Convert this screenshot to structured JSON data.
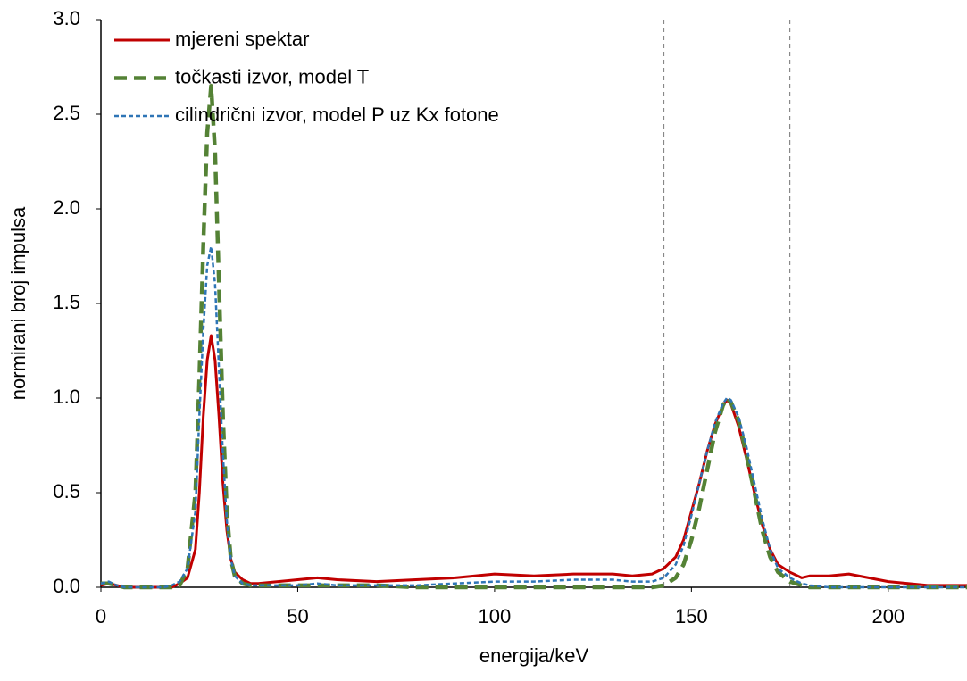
{
  "chart_data": {
    "type": "line",
    "x_label": "energija/keV",
    "y_label": "normirani broj impulsa",
    "x": [
      0,
      2,
      4,
      6,
      8,
      10,
      12,
      14,
      16,
      18,
      20,
      22,
      24,
      25,
      26,
      27,
      28,
      29,
      30,
      31,
      32,
      33,
      34,
      36,
      38,
      40,
      45,
      50,
      55,
      60,
      70,
      80,
      90,
      100,
      110,
      120,
      130,
      135,
      140,
      143,
      146,
      148,
      150,
      152,
      154,
      156,
      158,
      159,
      160,
      162,
      164,
      166,
      168,
      170,
      172,
      175,
      178,
      180,
      185,
      190,
      195,
      200,
      205,
      210,
      215,
      220
    ],
    "series": [
      {
        "name": "mjereni spektar",
        "color": "#c00000",
        "style": "solid",
        "values": [
          0.01,
          0.02,
          0.01,
          0,
          0,
          0,
          0,
          0,
          0,
          0,
          0.02,
          0.05,
          0.2,
          0.5,
          0.9,
          1.2,
          1.33,
          1.2,
          0.9,
          0.55,
          0.3,
          0.15,
          0.08,
          0.04,
          0.02,
          0.02,
          0.03,
          0.04,
          0.05,
          0.04,
          0.03,
          0.04,
          0.05,
          0.07,
          0.06,
          0.07,
          0.07,
          0.06,
          0.07,
          0.1,
          0.16,
          0.25,
          0.4,
          0.55,
          0.72,
          0.86,
          0.96,
          0.99,
          0.97,
          0.85,
          0.68,
          0.5,
          0.33,
          0.2,
          0.12,
          0.08,
          0.05,
          0.06,
          0.06,
          0.07,
          0.05,
          0.03,
          0.02,
          0.01,
          0.01,
          0.01
        ]
      },
      {
        "name": "točkasti izvor, model T",
        "color": "#548235",
        "style": "dashed",
        "values": [
          0.02,
          0.02,
          0.01,
          0,
          0,
          0,
          0,
          0,
          0,
          0,
          0.01,
          0.1,
          0.5,
          1.1,
          1.8,
          2.4,
          2.65,
          2.3,
          1.6,
          0.9,
          0.4,
          0.15,
          0.06,
          0.02,
          0.01,
          0.01,
          0.01,
          0.01,
          0.01,
          0.01,
          0.01,
          0,
          0,
          0,
          0,
          0,
          0,
          0,
          0,
          0.01,
          0.05,
          0.12,
          0.25,
          0.42,
          0.62,
          0.82,
          0.96,
          1.0,
          0.98,
          0.88,
          0.7,
          0.5,
          0.3,
          0.16,
          0.08,
          0.03,
          0.01,
          0,
          0,
          0,
          0,
          0,
          0,
          0,
          0,
          0
        ]
      },
      {
        "name": "cilindrični izvor, model P uz Kx fotone",
        "color": "#2e75b6",
        "style": "dotted",
        "values": [
          0.02,
          0.03,
          0.01,
          0,
          0,
          0,
          0,
          0,
          0,
          0.01,
          0.03,
          0.1,
          0.4,
          0.9,
          1.35,
          1.7,
          1.8,
          1.6,
          1.15,
          0.7,
          0.35,
          0.15,
          0.06,
          0.02,
          0.01,
          0.01,
          0.01,
          0.01,
          0.02,
          0.01,
          0.01,
          0.01,
          0.02,
          0.03,
          0.03,
          0.04,
          0.04,
          0.03,
          0.03,
          0.05,
          0.12,
          0.22,
          0.38,
          0.55,
          0.72,
          0.87,
          0.97,
          1.0,
          0.99,
          0.9,
          0.74,
          0.55,
          0.36,
          0.2,
          0.1,
          0.05,
          0.02,
          0.01,
          0,
          0,
          0,
          0,
          0,
          0,
          0,
          0
        ]
      }
    ],
    "reference_lines": [
      143,
      175
    ],
    "xlim": [
      0,
      220
    ],
    "xticks": [
      0,
      50,
      100,
      150,
      200
    ],
    "ylim": [
      0,
      3
    ],
    "yticks": [
      {
        "value": 0,
        "label": "0.0"
      },
      0.5,
      {
        "value": 1,
        "label": "1.0"
      },
      1.5,
      {
        "value": 2,
        "label": "2.0"
      },
      2.5,
      {
        "value": 3,
        "label": "3.0"
      }
    ],
    "legend": "top-left"
  }
}
